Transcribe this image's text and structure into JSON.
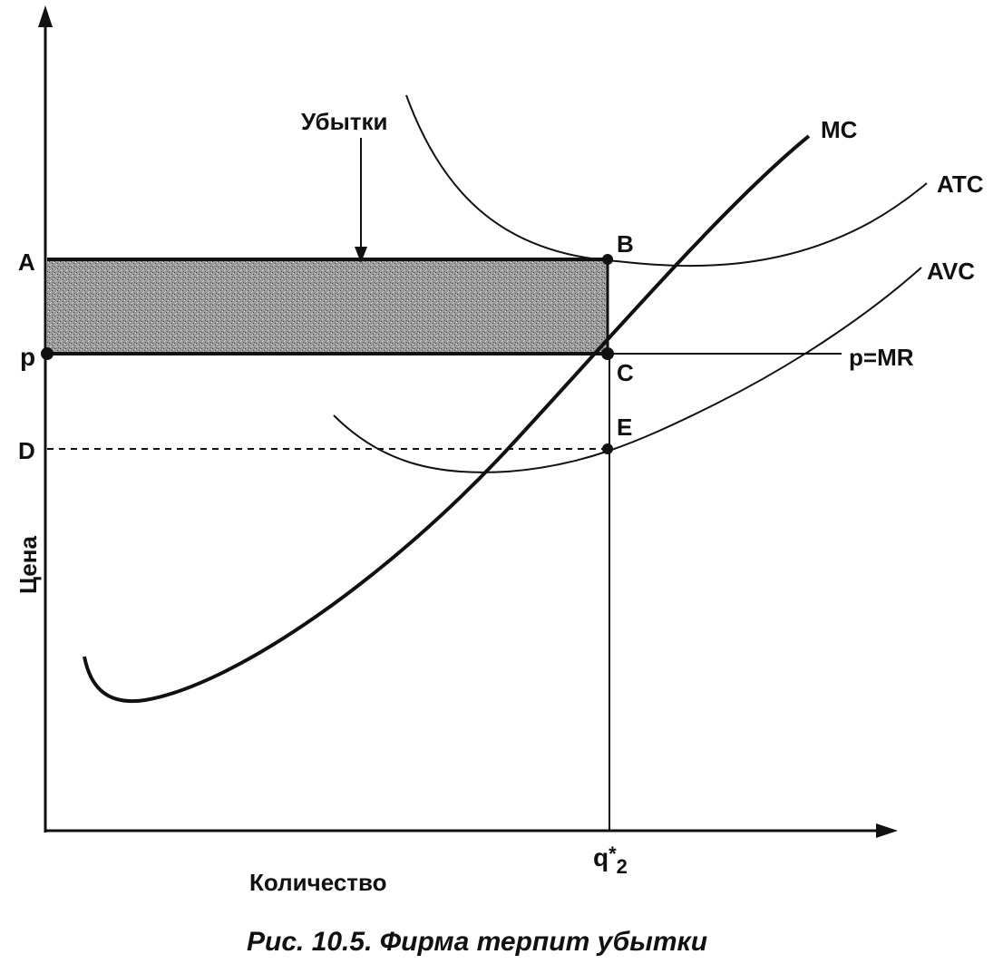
{
  "diagram": {
    "y_axis_label": "Цена",
    "x_axis_label": "Количество",
    "caption": "Рис. 10.5. Фирма терпит убытки",
    "annotation_losses": "Убытки",
    "curves": {
      "mc": "MC",
      "atc": "ATC",
      "avc": "AVC",
      "demand": "p=MR"
    },
    "price_levels": {
      "a": "A",
      "p": "p",
      "d": "D"
    },
    "points": {
      "b": "B",
      "c": "C",
      "e": "E"
    },
    "quantity_tick": {
      "base": "q",
      "star": "*",
      "sub": "2"
    }
  }
}
